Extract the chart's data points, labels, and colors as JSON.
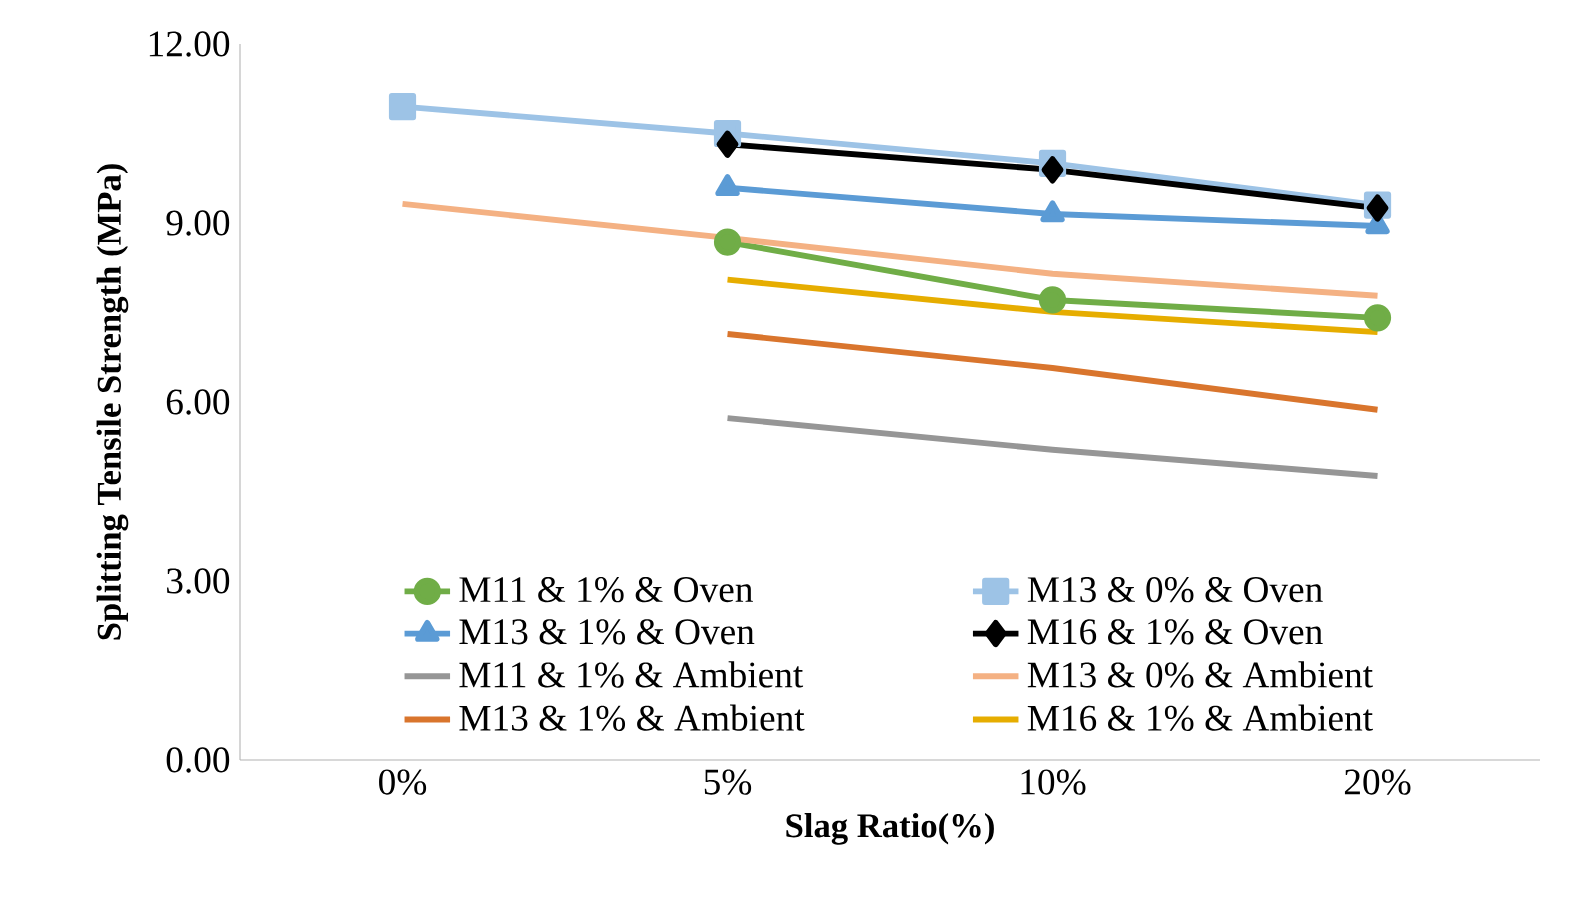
{
  "chart_data": {
    "type": "line",
    "xlabel": "Slag Ratio(%)",
    "ylabel": "Splitting Tensile Strength (MPa)",
    "categories": [
      "0%",
      "5%",
      "10%",
      "20%"
    ],
    "ylim": [
      0,
      12
    ],
    "yticks": [
      {
        "value": 0,
        "label": "0.00"
      },
      {
        "value": 3,
        "label": "3.00"
      },
      {
        "value": 6,
        "label": "6.00"
      },
      {
        "value": 9,
        "label": "9.00"
      },
      {
        "value": 12,
        "label": "12.00"
      }
    ],
    "grid": false,
    "legend": "bottom",
    "line_style": "solid",
    "series": [
      {
        "name": "M11 & 1% & Oven",
        "color": "#70ad47",
        "marker": "circle",
        "values": [
          null,
          8.68,
          7.71,
          7.41
        ]
      },
      {
        "name": "M13 & 0% & Oven",
        "color": "#9dc3e6",
        "marker": "square",
        "values": [
          10.95,
          10.5,
          10.0,
          9.3
        ]
      },
      {
        "name": "M13 & 1% & Oven",
        "color": "#5b9bd5",
        "marker": "triangle",
        "values": [
          null,
          9.59,
          9.15,
          8.95
        ]
      },
      {
        "name": "M16 & 1% & Oven",
        "color": "#000000",
        "marker": "diamond",
        "values": [
          null,
          10.32,
          9.89,
          9.25
        ]
      },
      {
        "name": "M11 & 1% & Ambient",
        "color": "#969696",
        "marker": "none",
        "values": [
          null,
          5.73,
          5.2,
          4.76
        ]
      },
      {
        "name": "M13 & 0% & Ambient",
        "color": "#f4b183",
        "marker": "none",
        "values": [
          9.32,
          8.75,
          8.15,
          7.78
        ]
      },
      {
        "name": "M13 & 1% & Ambient",
        "color": "#d9752d",
        "marker": "none",
        "values": [
          null,
          7.14,
          6.57,
          5.87
        ]
      },
      {
        "name": "M16 & 1% & Ambient",
        "color": "#e6ad00",
        "marker": "none",
        "values": [
          null,
          8.05,
          7.51,
          7.17
        ]
      }
    ]
  }
}
